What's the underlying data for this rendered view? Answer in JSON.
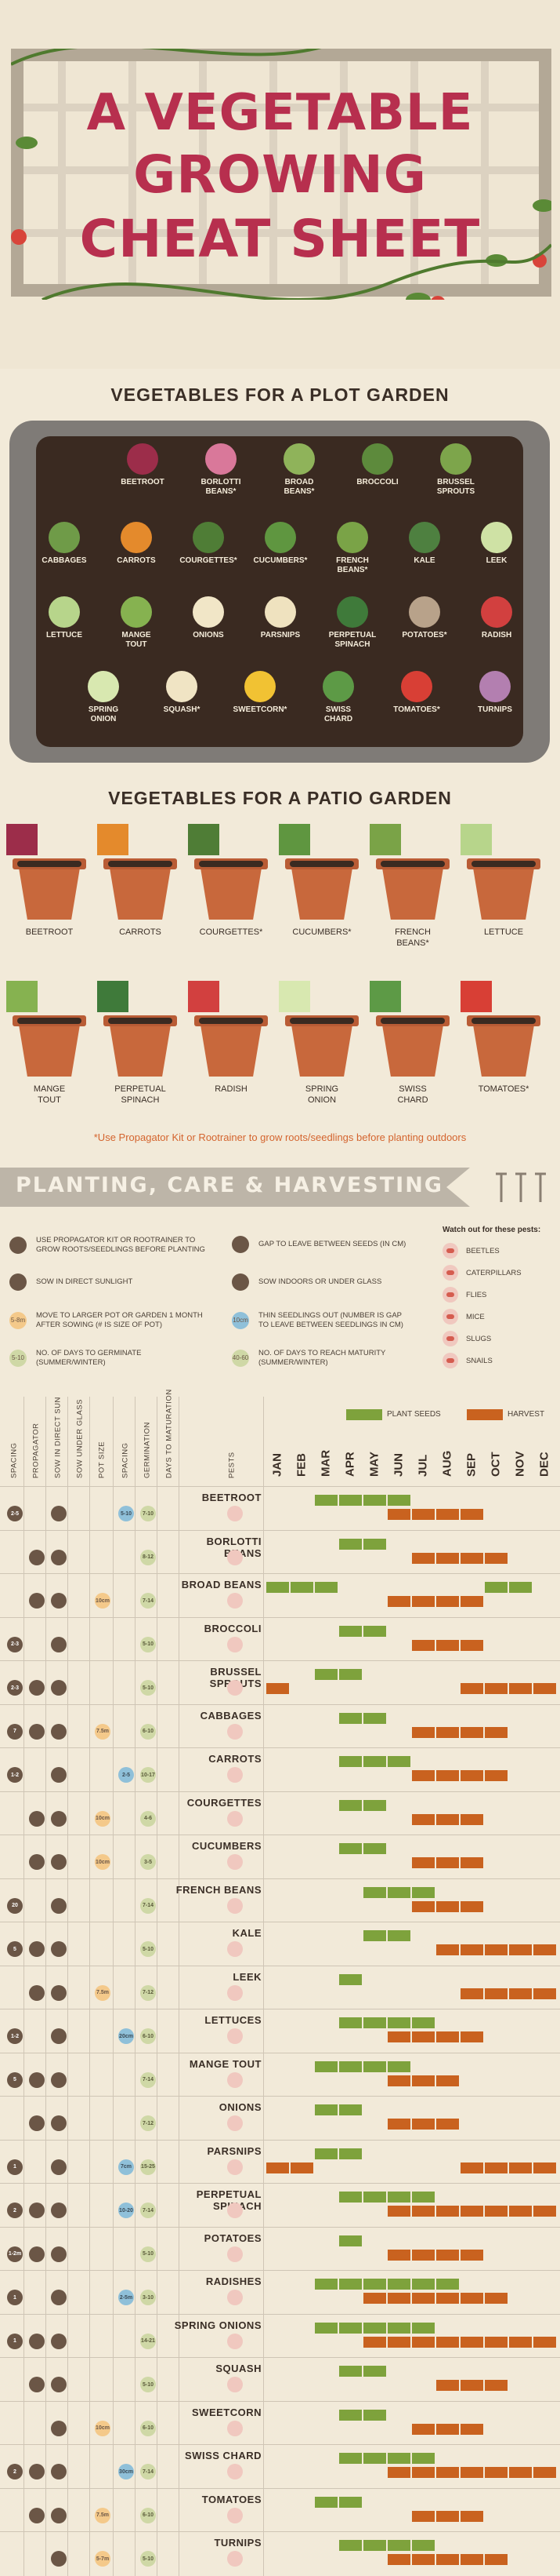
{
  "header": {
    "title_lines": [
      "A VEGETABLE",
      "GROWING",
      "CHEAT SHEET"
    ],
    "title_color": "#b72f4e"
  },
  "plot_section": {
    "heading": "VEGETABLES FOR A PLOT GARDEN",
    "items": [
      {
        "label": "BEETROOT",
        "color": "#9c2d4a"
      },
      {
        "label": "BORLOTTI\nBEANS*",
        "color": "#d9789a"
      },
      {
        "label": "BROAD\nBEANS*",
        "color": "#8fb35a"
      },
      {
        "label": "BROCCOLI",
        "color": "#5d8a3c"
      },
      {
        "label": "BRUSSEL\nSPROUTS",
        "color": "#7da54b"
      },
      {
        "label": "CABBAGES",
        "color": "#6f9b48"
      },
      {
        "label": "CARROTS",
        "color": "#e48a2c"
      },
      {
        "label": "COURGETTES*",
        "color": "#4f7d36"
      },
      {
        "label": "CUCUMBERS*",
        "color": "#5f9640"
      },
      {
        "label": "FRENCH\nBEANS*",
        "color": "#7aa347"
      },
      {
        "label": "KALE",
        "color": "#4e8040"
      },
      {
        "label": "LEEK",
        "color": "#cfe2a5"
      },
      {
        "label": "LETTUCE",
        "color": "#b7d58b"
      },
      {
        "label": "MANGE\nTOUT",
        "color": "#86b250"
      },
      {
        "label": "ONIONS",
        "color": "#f1e6c7"
      },
      {
        "label": "PARSNIPS",
        "color": "#efe2bf"
      },
      {
        "label": "PERPETUAL\nSPINACH",
        "color": "#3f7a3a"
      },
      {
        "label": "POTATOES*",
        "color": "#b8a28a"
      },
      {
        "label": "RADISH",
        "color": "#d2403f"
      },
      {
        "label": "SPRING\nONION",
        "color": "#d8e8b0"
      },
      {
        "label": "SQUASH*",
        "color": "#f0e4c4"
      },
      {
        "label": "SWEETCORN*",
        "color": "#f1c233"
      },
      {
        "label": "SWISS\nCHARD",
        "color": "#5d9a46"
      },
      {
        "label": "TOMATOES*",
        "color": "#d83f35"
      },
      {
        "label": "TURNIPS",
        "color": "#b37fb0"
      }
    ]
  },
  "patio_section": {
    "heading": "VEGETABLES FOR A PATIO GARDEN",
    "pots": [
      {
        "label": "BEETROOT",
        "color": "#9c2d4a"
      },
      {
        "label": "CARROTS",
        "color": "#e48a2c"
      },
      {
        "label": "COURGETTES*",
        "color": "#4f7d36"
      },
      {
        "label": "CUCUMBERS*",
        "color": "#5f9640"
      },
      {
        "label": "FRENCH\nBEANS*",
        "color": "#7aa347"
      },
      {
        "label": "LETTUCE",
        "color": "#b7d58b"
      },
      {
        "label": "MANGE\nTOUT",
        "color": "#86b250"
      },
      {
        "label": "PERPETUAL\nSPINACH",
        "color": "#3f7a3a"
      },
      {
        "label": "RADISH",
        "color": "#d2403f"
      },
      {
        "label": "SPRING\nONION",
        "color": "#d8e8b0"
      },
      {
        "label": "SWISS\nCHARD",
        "color": "#5d9a46"
      },
      {
        "label": "TOMATOES*",
        "color": "#d83f35"
      }
    ],
    "note": "*Use Propagator Kit or Rootrainer to grow roots/seedlings before planting outdoors"
  },
  "banner": {
    "title": "PLANTING, CARE & HARVESTING"
  },
  "key": {
    "left": [
      {
        "icon": "propagator-icon",
        "color": "#6b5646",
        "text": "USE PROPAGATOR KIT OR ROOTRAINER TO\nGROW ROOTS/SEEDLINGS BEFORE PLANTING"
      },
      {
        "icon": "sun-icon",
        "color": "#6b5646",
        "text": "SOW IN DIRECT SUNLIGHT"
      },
      {
        "icon": "pot-size-icon",
        "color": "#f4c98a",
        "badge": "5-8m",
        "text": "MOVE TO LARGER POT OR GARDEN 1 MONTH\nAFTER SOWING (# IS SIZE OF POT)"
      },
      {
        "icon": "germination-icon",
        "color": "#cfd8a6",
        "badge": "5-10",
        "text": "NO. OF DAYS TO GERMINATE\n(SUMMER/WINTER)"
      }
    ],
    "right": [
      {
        "icon": "gap-icon",
        "color": "#6b5646",
        "text": "GAP TO LEAVE BETWEEN SEEDS (IN CM)"
      },
      {
        "icon": "glass-icon",
        "color": "#6b5646",
        "text": "SOW INDOORS OR UNDER GLASS"
      },
      {
        "icon": "thin-icon",
        "color": "#8fc0d9",
        "badge": "10cm",
        "text": "THIN SEEDLINGS OUT (NUMBER IS GAP\nTO LEAVE BETWEEN SEEDLINGS IN CM)"
      },
      {
        "icon": "maturity-icon",
        "color": "#cfd8a6",
        "badge": "40-60",
        "text": "NO. OF DAYS TO REACH MATURITY\n(SUMMER/WINTER)"
      }
    ],
    "pests_title": "Watch out for these pests:",
    "pests": [
      "BEETLES",
      "CATERPILLARS",
      "FLIES",
      "MICE",
      "SLUGS",
      "SNAILS"
    ]
  },
  "table": {
    "columns": [
      "SPACING",
      "PROPAGATOR",
      "SOW IN DIRECT SUN",
      "SOW UNDER GLASS",
      "POT SIZE",
      "SPACING",
      "GERMINATION",
      "DAYS TO MATURATION",
      "PESTS"
    ],
    "months": [
      "JAN",
      "FEB",
      "MAR",
      "APR",
      "MAY",
      "JUN",
      "JUL",
      "AUG",
      "SEP",
      "OCT",
      "NOV",
      "DEC"
    ],
    "legend": {
      "plant": "PLANT SEEDS",
      "harvest": "HARVEST"
    },
    "colors": {
      "plant": "#7ea23c",
      "harvest": "#c9621f"
    },
    "rows": [
      {
        "name": "BEETROOT",
        "gap": "2-5",
        "thin": "5-10",
        "germ": "7-10",
        "plant": [
          3,
          4,
          5,
          6
        ],
        "harvest": [
          6,
          7,
          8,
          9
        ]
      },
      {
        "name": "BORLOTTI BEANS",
        "thin": "",
        "germ": "8-12",
        "plant": [
          4,
          5
        ],
        "harvest": [
          7,
          8,
          9,
          10
        ]
      },
      {
        "name": "BROAD BEANS",
        "pot": "10cm",
        "germ": "7-14",
        "plant": [
          1,
          2,
          3,
          10,
          11
        ],
        "harvest": [
          6,
          7,
          8,
          9
        ]
      },
      {
        "name": "BROCCOLI",
        "gap": "2-3",
        "germ": "5-10",
        "plant": [
          4,
          5
        ],
        "harvest": [
          7,
          8,
          9
        ]
      },
      {
        "name": "BRUSSEL SPROUTS",
        "gap": "2-3",
        "germ": "5-10",
        "plant": [
          3,
          4
        ],
        "harvest": [
          0,
          9,
          10,
          11,
          12
        ]
      },
      {
        "name": "CABBAGES",
        "gap": "7",
        "pot": "7.5m",
        "germ": "6-10",
        "plant": [
          4,
          5
        ],
        "harvest": [
          7,
          8,
          9,
          10
        ]
      },
      {
        "name": "CARROTS",
        "gap": "1-2",
        "thin": "2-5",
        "germ": "10-17",
        "plant": [
          4,
          5,
          6
        ],
        "harvest": [
          7,
          8,
          9,
          10
        ]
      },
      {
        "name": "COURGETTES",
        "pot": "10cm",
        "germ": "4-6",
        "plant": [
          4,
          5
        ],
        "harvest": [
          7,
          8,
          9
        ]
      },
      {
        "name": "CUCUMBERS",
        "pot": "10cm",
        "germ": "3-5",
        "plant": [
          4,
          5
        ],
        "harvest": [
          7,
          8,
          9
        ]
      },
      {
        "name": "FRENCH BEANS",
        "gap": "20",
        "germ": "7-14",
        "plant": [
          5,
          6,
          7
        ],
        "harvest": [
          7,
          8,
          9
        ]
      },
      {
        "name": "KALE",
        "gap": "5",
        "germ": "5-10",
        "plant": [
          5,
          6
        ],
        "harvest": [
          8,
          9,
          10,
          11,
          12
        ]
      },
      {
        "name": "LEEK",
        "pot": "7.5m",
        "germ": "7-12",
        "plant": [
          4
        ],
        "harvest": [
          9,
          10,
          11,
          12
        ]
      },
      {
        "name": "LETTUCES",
        "gap": "1-2",
        "thin": "20cm",
        "germ": "6-10",
        "plant": [
          4,
          5,
          6,
          7
        ],
        "harvest": [
          6,
          7,
          8,
          9
        ]
      },
      {
        "name": "MANGE TOUT",
        "gap": "5",
        "germ": "7-14",
        "plant": [
          3,
          4,
          5,
          6
        ],
        "harvest": [
          6,
          7,
          8
        ]
      },
      {
        "name": "ONIONS",
        "germ": "7-12",
        "plant": [
          3,
          4
        ],
        "harvest": [
          6,
          7,
          8
        ]
      },
      {
        "name": "PARSNIPS",
        "gap": "1",
        "thin": "7cm",
        "germ": "15-25",
        "plant": [
          3,
          4
        ],
        "harvest": [
          1,
          2,
          9,
          10,
          11,
          12
        ]
      },
      {
        "name": "PERPETUAL SPINACH",
        "gap": "2",
        "thin": "10-20",
        "germ": "7-14",
        "plant": [
          4,
          5,
          6,
          7
        ],
        "harvest": [
          6,
          7,
          8,
          9,
          10,
          11,
          12
        ]
      },
      {
        "name": "POTATOES",
        "gap": "1-2m",
        "germ": "5-10",
        "plant": [
          4
        ],
        "harvest": [
          6,
          7,
          8,
          9
        ]
      },
      {
        "name": "RADISHES",
        "gap": "1",
        "thin": "2-5m",
        "germ": "3-10",
        "plant": [
          3,
          4,
          5,
          6,
          7,
          8
        ],
        "harvest": [
          5,
          6,
          7,
          8,
          9,
          10
        ]
      },
      {
        "name": "SPRING ONIONS",
        "gap": "1",
        "germ": "14-21",
        "plant": [
          3,
          4,
          5,
          6,
          7
        ],
        "harvest": [
          5,
          6,
          7,
          8,
          9,
          10,
          11,
          12
        ]
      },
      {
        "name": "SQUASH",
        "germ": "5-10",
        "plant": [
          4,
          5
        ],
        "harvest": [
          8,
          9,
          10
        ]
      },
      {
        "name": "SWEETCORN",
        "pot": "10cm",
        "germ": "6-10",
        "plant": [
          4,
          5
        ],
        "harvest": [
          7,
          8,
          9
        ]
      },
      {
        "name": "SWISS CHARD",
        "gap": "2",
        "thin": "30cm",
        "germ": "7-14",
        "plant": [
          4,
          5,
          6,
          7
        ],
        "harvest": [
          6,
          7,
          8,
          9,
          10,
          11,
          12
        ]
      },
      {
        "name": "TOMATOES",
        "pot": "7.5m",
        "germ": "6-10",
        "plant": [
          3,
          4
        ],
        "harvest": [
          7,
          8,
          9
        ]
      },
      {
        "name": "TURNIPS",
        "pot": "5-7m",
        "germ": "5-10",
        "plant": [
          4,
          5,
          6,
          7
        ],
        "harvest": [
          6,
          7,
          8,
          9,
          10
        ]
      }
    ]
  }
}
